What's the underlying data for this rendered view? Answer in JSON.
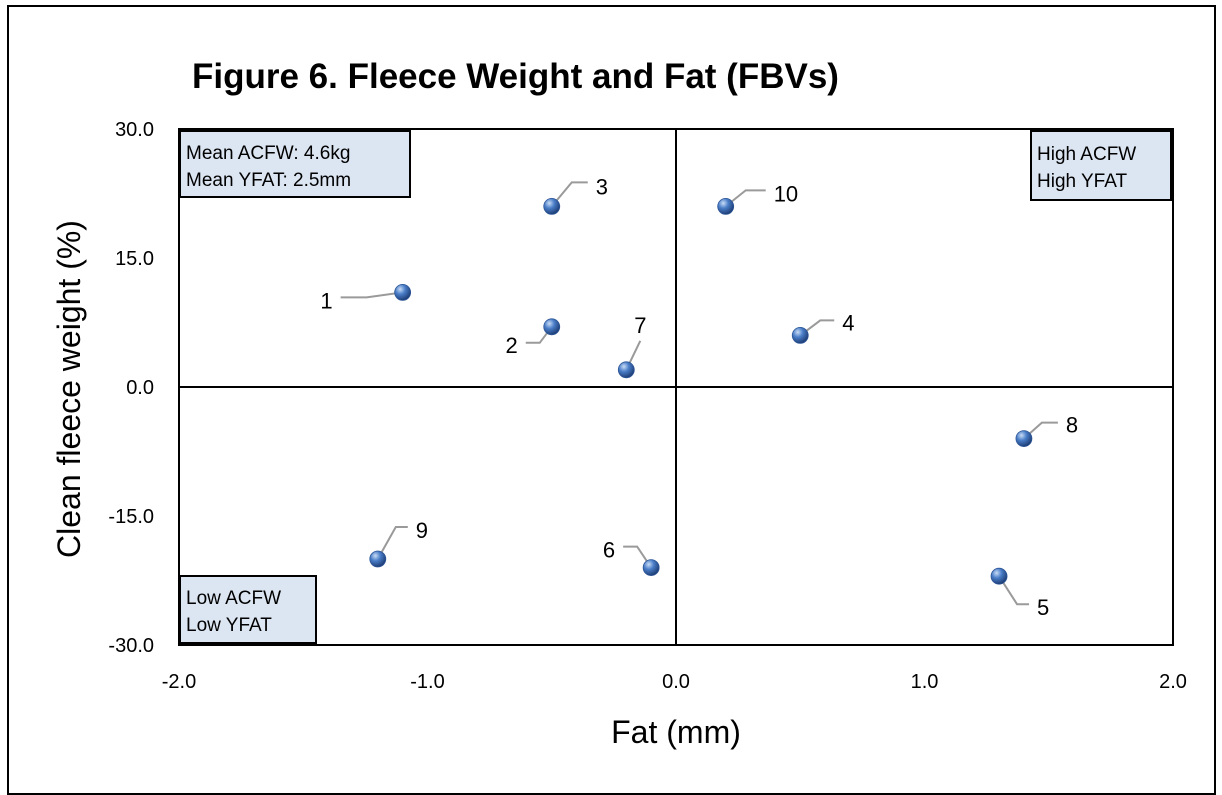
{
  "chart_data": {
    "type": "scatter",
    "title": "Figure 6.  Fleece Weight and Fat (FBVs)",
    "xlabel": "Fat (mm)",
    "ylabel": "Clean fleece weight (%)",
    "xlim": [
      -2.0,
      2.0
    ],
    "ylim": [
      -30.0,
      30.0
    ],
    "xticks": [
      "-2.0",
      "-1.0",
      "0.0",
      "1.0",
      "2.0"
    ],
    "yticks": [
      "30.0",
      "15.0",
      "0.0",
      "-15.0",
      "-30.0"
    ],
    "grid": false,
    "marker_color": "#4a7ec8",
    "points": [
      {
        "label": "1",
        "x": -1.1,
        "y": 11.0
      },
      {
        "label": "2",
        "x": -0.5,
        "y": 7.0
      },
      {
        "label": "3",
        "x": -0.5,
        "y": 21.0
      },
      {
        "label": "4",
        "x": 0.5,
        "y": 6.0
      },
      {
        "label": "5",
        "x": 1.3,
        "y": -22.0
      },
      {
        "label": "6",
        "x": -0.1,
        "y": -21.0
      },
      {
        "label": "7",
        "x": -0.2,
        "y": 2.0
      },
      {
        "label": "8",
        "x": 1.4,
        "y": -6.0
      },
      {
        "label": "9",
        "x": -1.2,
        "y": -20.0
      },
      {
        "label": "10",
        "x": 0.2,
        "y": 21.0
      }
    ],
    "annotations": {
      "top_left": [
        "Mean ACFW: 4.6kg",
        "Mean YFAT: 2.5mm"
      ],
      "top_right": [
        "High ACFW",
        "High YFAT"
      ],
      "bottom_left": [
        "Low ACFW",
        "Low YFAT"
      ]
    },
    "annotation_box_color": "#dce6f2"
  }
}
